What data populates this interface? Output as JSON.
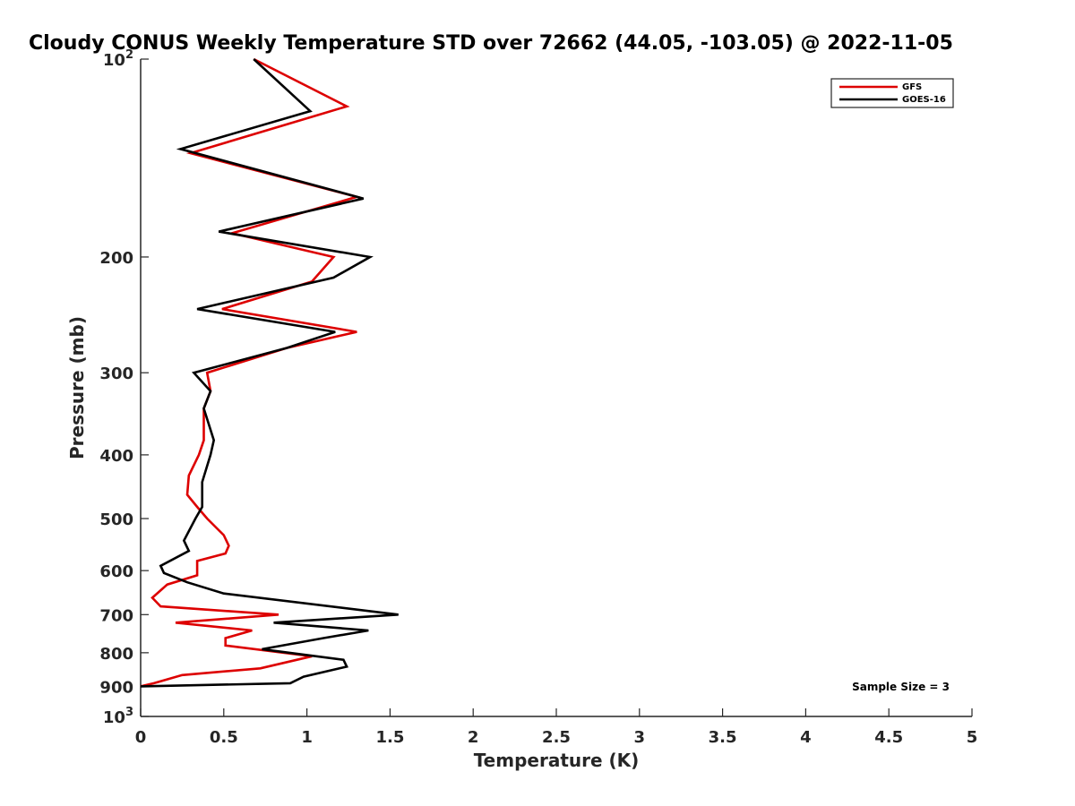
{
  "chart_data": {
    "type": "line",
    "title": "Cloudy CONUS Weekly Temperature STD over 72662 (44.05, -103.05) @ 2022-11-05",
    "xlabel": "Temperature (K)",
    "ylabel": "Pressure (mb)",
    "xlim": [
      0,
      5
    ],
    "ylim": [
      100,
      1000
    ],
    "y_scale": "log",
    "y_reversed": true,
    "x_ticks": [
      {
        "value": 0,
        "label": "0"
      },
      {
        "value": 0.5,
        "label": "0.5"
      },
      {
        "value": 1,
        "label": "1"
      },
      {
        "value": 1.5,
        "label": "1.5"
      },
      {
        "value": 2,
        "label": "2"
      },
      {
        "value": 2.5,
        "label": "2.5"
      },
      {
        "value": 3,
        "label": "3"
      },
      {
        "value": 3.5,
        "label": "3.5"
      },
      {
        "value": 4,
        "label": "4"
      },
      {
        "value": 4.5,
        "label": "4.5"
      },
      {
        "value": 5,
        "label": "5"
      }
    ],
    "y_ticks": [
      {
        "value": 100,
        "label": "10",
        "sup": "2"
      },
      {
        "value": 200,
        "label": "200",
        "sup": ""
      },
      {
        "value": 300,
        "label": "300",
        "sup": ""
      },
      {
        "value": 400,
        "label": "400",
        "sup": ""
      },
      {
        "value": 500,
        "label": "500",
        "sup": ""
      },
      {
        "value": 600,
        "label": "600",
        "sup": ""
      },
      {
        "value": 700,
        "label": "700",
        "sup": ""
      },
      {
        "value": 800,
        "label": "800",
        "sup": ""
      },
      {
        "value": 900,
        "label": "900",
        "sup": ""
      },
      {
        "value": 1000,
        "label": "10",
        "sup": "3"
      }
    ],
    "grid": false,
    "legend_position": "top-right",
    "series": [
      {
        "name": "GFS",
        "color": "#dd0000",
        "points": [
          [
            0.68,
            100
          ],
          [
            1.24,
            118
          ],
          [
            0.3,
            139
          ],
          [
            1.3,
            162
          ],
          [
            0.55,
            184
          ],
          [
            1.16,
            200
          ],
          [
            1.03,
            218
          ],
          [
            0.49,
            240
          ],
          [
            1.3,
            260
          ],
          [
            0.88,
            275
          ],
          [
            0.4,
            300
          ],
          [
            0.42,
            320
          ],
          [
            0.38,
            340
          ],
          [
            0.38,
            380
          ],
          [
            0.35,
            400
          ],
          [
            0.29,
            430
          ],
          [
            0.28,
            460
          ],
          [
            0.34,
            480
          ],
          [
            0.4,
            500
          ],
          [
            0.5,
            530
          ],
          [
            0.53,
            550
          ],
          [
            0.51,
            565
          ],
          [
            0.34,
            580
          ],
          [
            0.34,
            610
          ],
          [
            0.16,
            630
          ],
          [
            0.07,
            660
          ],
          [
            0.12,
            680
          ],
          [
            0.83,
            700
          ],
          [
            0.21,
            720
          ],
          [
            0.67,
            740
          ],
          [
            0.51,
            760
          ],
          [
            0.51,
            780
          ],
          [
            1.03,
            810
          ],
          [
            0.72,
            845
          ],
          [
            0.25,
            865
          ],
          [
            0.08,
            890
          ],
          [
            0.0,
            900
          ]
        ]
      },
      {
        "name": "GOES-16",
        "color": "#000000",
        "points": [
          [
            0.68,
            100
          ],
          [
            1.02,
            120
          ],
          [
            0.24,
            137
          ],
          [
            1.34,
            163
          ],
          [
            0.47,
            183
          ],
          [
            1.38,
            200
          ],
          [
            1.16,
            215
          ],
          [
            0.34,
            240
          ],
          [
            1.17,
            260
          ],
          [
            0.88,
            275
          ],
          [
            0.32,
            300
          ],
          [
            0.42,
            320
          ],
          [
            0.38,
            340
          ],
          [
            0.44,
            380
          ],
          [
            0.42,
            400
          ],
          [
            0.37,
            440
          ],
          [
            0.37,
            480
          ],
          [
            0.33,
            500
          ],
          [
            0.26,
            540
          ],
          [
            0.29,
            560
          ],
          [
            0.12,
            590
          ],
          [
            0.14,
            605
          ],
          [
            0.28,
            625
          ],
          [
            0.5,
            650
          ],
          [
            1.55,
            700
          ],
          [
            0.8,
            720
          ],
          [
            1.37,
            740
          ],
          [
            1.1,
            760
          ],
          [
            0.73,
            790
          ],
          [
            1.22,
            820
          ],
          [
            1.24,
            840
          ],
          [
            0.98,
            870
          ],
          [
            0.9,
            890
          ],
          [
            0.0,
            900
          ]
        ]
      }
    ],
    "annotation": "Sample Size = 3"
  }
}
